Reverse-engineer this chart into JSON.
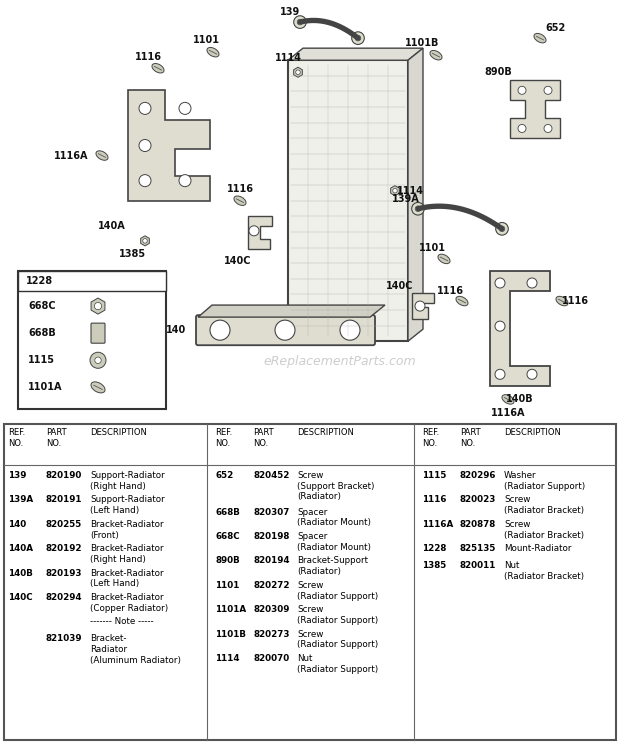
{
  "bg_color": "#ffffff",
  "watermark": "eReplacementParts.com",
  "table": {
    "col1": [
      [
        "139",
        "820190",
        "Support-Radiator\n(Right Hand)"
      ],
      [
        "139A",
        "820191",
        "Support-Radiator\n(Left Hand)"
      ],
      [
        "140",
        "820255",
        "Bracket-Radiator\n(Front)"
      ],
      [
        "140A",
        "820192",
        "Bracket-Radiator\n(Right Hand)"
      ],
      [
        "140B",
        "820193",
        "Bracket-Radiator\n(Left Hand)"
      ],
      [
        "140C",
        "820294",
        "Bracket-Radiator\n(Copper Radiator)"
      ],
      [
        "",
        "",
        "------- Note -----"
      ],
      [
        "",
        "821039",
        "Bracket-\nRadiator\n(Aluminum Radiator)"
      ]
    ],
    "col2": [
      [
        "652",
        "820452",
        "Screw\n(Support Bracket)\n(Radiator)"
      ],
      [
        "668B",
        "820307",
        "Spacer\n(Radiator Mount)"
      ],
      [
        "668C",
        "820198",
        "Spacer\n(Radiator Mount)"
      ],
      [
        "890B",
        "820194",
        "Bracket-Support\n(Radiator)"
      ],
      [
        "1101",
        "820272",
        "Screw\n(Radiator Support)"
      ],
      [
        "1101A",
        "820309",
        "Screw\n(Radiator Support)"
      ],
      [
        "1101B",
        "820273",
        "Screw\n(Radiator Support)"
      ],
      [
        "1114",
        "820070",
        "Nut\n(Radiator Support)"
      ]
    ],
    "col3": [
      [
        "1115",
        "820296",
        "Washer\n(Radiator Support)"
      ],
      [
        "1116",
        "820023",
        "Screw\n(Radiator Bracket)"
      ],
      [
        "1116A",
        "820878",
        "Screw\n(Radiator Bracket)"
      ],
      [
        "1228",
        "825135",
        "Mount-Radiator"
      ],
      [
        "1385",
        "820011",
        "Nut\n(Radiator Bracket)"
      ]
    ]
  }
}
